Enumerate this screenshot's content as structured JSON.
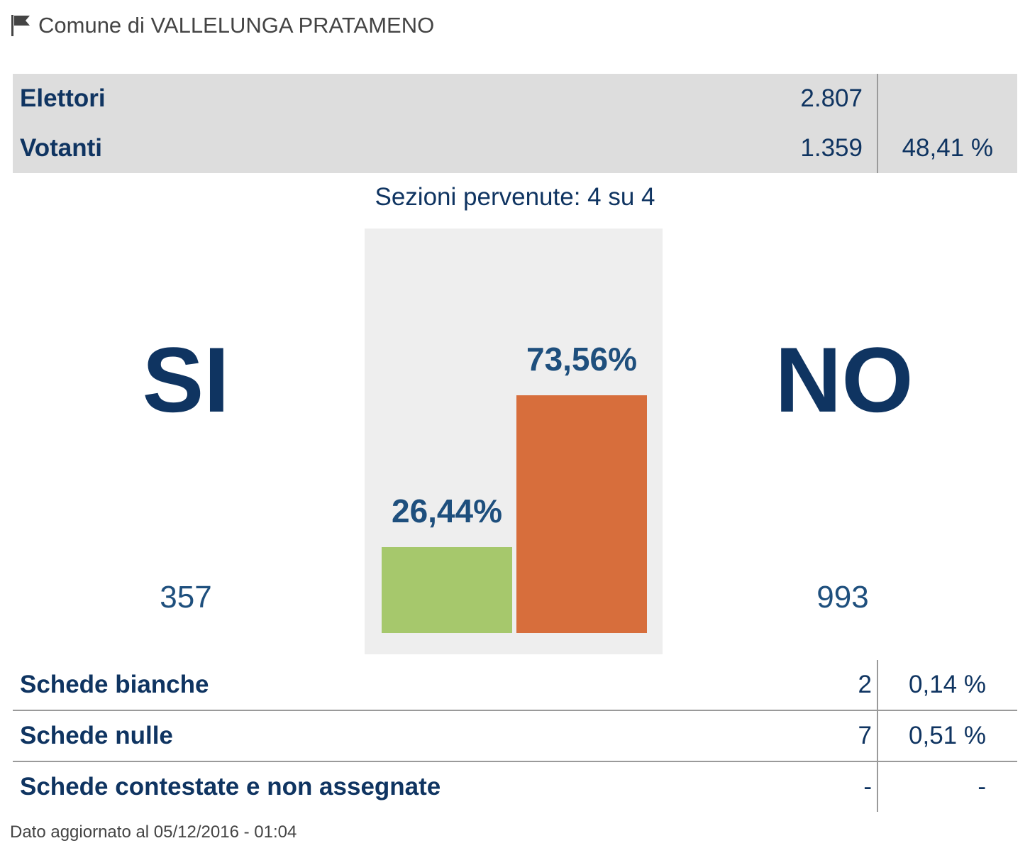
{
  "header": {
    "title": "Comune di VALLELUNGA PRATAMENO",
    "icon": "flag-icon"
  },
  "summary": {
    "rows": [
      {
        "label": "Elettori",
        "value": "2.807",
        "percent": ""
      },
      {
        "label": "Votanti",
        "value": "1.359",
        "percent": "48,41 %"
      }
    ]
  },
  "sezioni": "Sezioni pervenute: 4 su 4",
  "results": {
    "si": {
      "label": "SI",
      "votes": "357",
      "percent_label": "26,44%"
    },
    "no": {
      "label": "NO",
      "votes": "993",
      "percent_label": "73,56%"
    }
  },
  "chart_data": {
    "type": "bar",
    "categories": [
      "SI",
      "NO"
    ],
    "values": [
      26.44,
      73.56
    ],
    "data_labels": [
      "26,44%",
      "73,56%"
    ],
    "colors": [
      "#a6c86c",
      "#d76e3c"
    ],
    "ylim": [
      0,
      100
    ]
  },
  "details": {
    "rows": [
      {
        "label": "Schede bianche",
        "value": "2",
        "percent": "0,14 %"
      },
      {
        "label": "Schede nulle",
        "value": "7",
        "percent": "0,51 %"
      },
      {
        "label": "Schede contestate e non assegnate",
        "value": "-",
        "percent": "-"
      }
    ]
  },
  "footer": "Dato aggiornato al 05/12/2016 - 01:04",
  "colors": {
    "primary": "#0f3461",
    "secondary": "#1e4f7d",
    "summary_bg": "#dddddd",
    "chart_bg": "#eeeeee"
  }
}
